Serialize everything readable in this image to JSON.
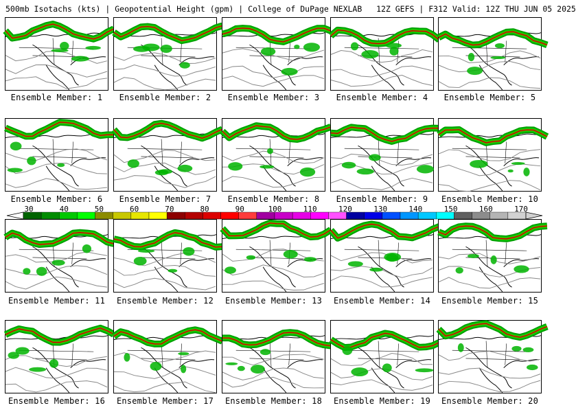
{
  "header": {
    "title": "500mb Isotachs (kts) | Geopotential Height (gpm) | College of DuPage NEXLAB",
    "run": "12Z GEFS | F312 Valid: 12Z THU JUN 05 2025"
  },
  "panels": [
    {
      "label": "Ensemble Member: 1"
    },
    {
      "label": "Ensemble Member: 2"
    },
    {
      "label": "Ensemble Member: 3"
    },
    {
      "label": "Ensemble Member: 4"
    },
    {
      "label": "Ensemble Member: 5"
    },
    {
      "label": "Ensemble Member: 6"
    },
    {
      "label": "Ensemble Member: 7"
    },
    {
      "label": "Ensemble Member: 8"
    },
    {
      "label": "Ensemble Member: 9"
    },
    {
      "label": "Ensemble Member: 10"
    },
    {
      "label": "Ensemble Member: 11"
    },
    {
      "label": "Ensemble Member: 12"
    },
    {
      "label": "Ensemble Member: 13"
    },
    {
      "label": "Ensemble Member: 14"
    },
    {
      "label": "Ensemble Member: 15"
    },
    {
      "label": "Ensemble Member: 16"
    },
    {
      "label": "Ensemble Member: 17"
    },
    {
      "label": "Ensemble Member: 18"
    },
    {
      "label": "Ensemble Member: 19"
    },
    {
      "label": "Ensemble Member: 20"
    }
  ],
  "legend": {
    "labels": [
      "30",
      "40",
      "50",
      "60",
      "70",
      "80",
      "90",
      "100",
      "110",
      "120",
      "130",
      "140",
      "150",
      "160",
      "170"
    ],
    "colors": [
      "#006400",
      "#008c00",
      "#00c800",
      "#00ff00",
      "#8c8c00",
      "#c8c800",
      "#e6e600",
      "#ffff00",
      "#8c0000",
      "#b40000",
      "#dc0000",
      "#ff0000",
      "#ff3c3c",
      "#a000a0",
      "#c800c8",
      "#e600e6",
      "#ff00ff",
      "#ff50ff",
      "#0000a0",
      "#0000e6",
      "#0050ff",
      "#0096ff",
      "#00c8ff",
      "#00ffff",
      "#606060",
      "#8c8c8c",
      "#b4b4b4",
      "#d2d2d2"
    ]
  }
}
